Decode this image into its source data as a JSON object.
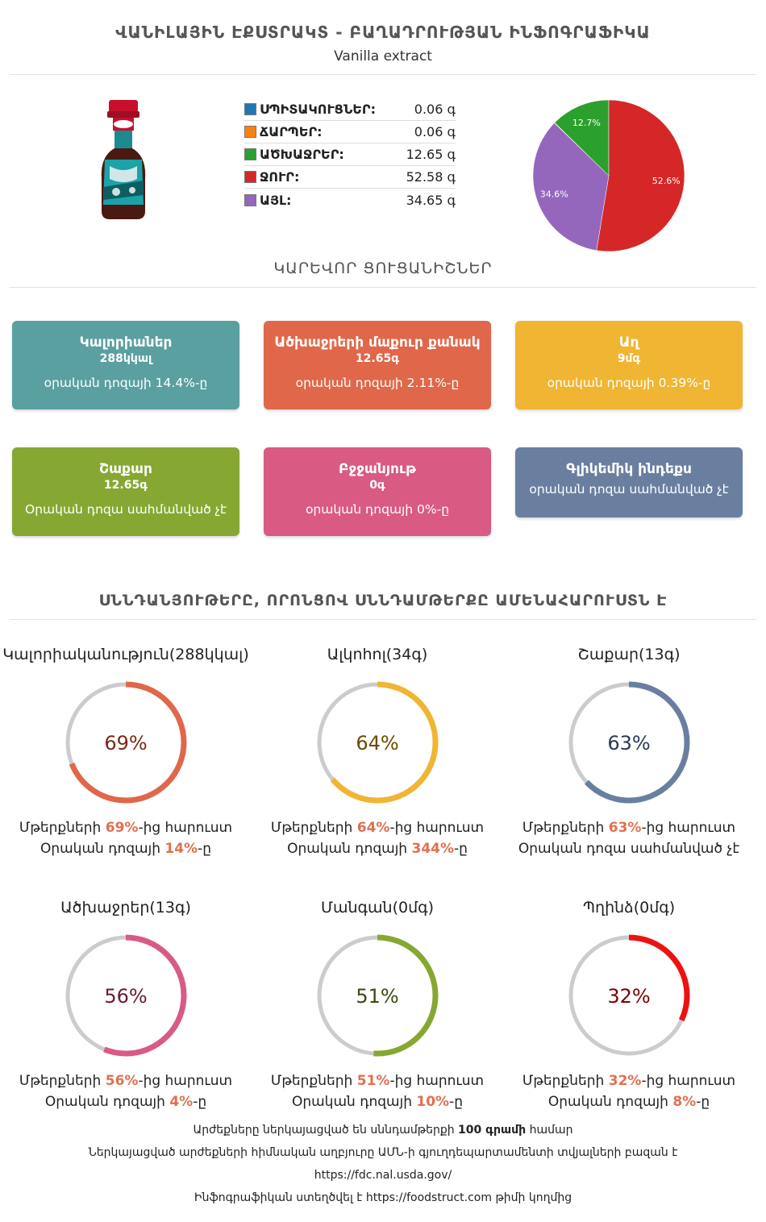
{
  "header": {
    "title": "ՎԱՆԻԼԱՅԻՆ ԷՔՍՏՐԱԿՏ - ԲԱՂԱԴՐՈՒԹՅԱՆ ԻՆՖՈԳՐԱՖԻԿԱ",
    "subtitle": "Vanilla extract"
  },
  "composition": [
    {
      "label": "ՍՊԻՏԱԿՈՒՑՆԵՐ:",
      "value": "0.06 գ",
      "color": "#1f77b4"
    },
    {
      "label": "ՃԱՐՊԵՐ:",
      "value": "0.06 գ",
      "color": "#ff7f0e"
    },
    {
      "label": "ԱԾԽԱՋՐԵՐ:",
      "value": "12.65 գ",
      "color": "#2ca02c"
    },
    {
      "label": "ՋՈՒՐ:",
      "value": "52.58 գ",
      "color": "#d62728"
    },
    {
      "label": "ԱՅԼ:",
      "value": "34.65 գ",
      "color": "#9467bd"
    }
  ],
  "chart_data": {
    "type": "pie",
    "slices": [
      {
        "label": "ՍՊԻՏԱԿՈՒՑՆԵՐ",
        "value": 0.06,
        "pct_label": "",
        "color": "#1f77b4"
      },
      {
        "label": "ՃԱՐՊԵՐ",
        "value": 0.06,
        "pct_label": "",
        "color": "#ff7f0e"
      },
      {
        "label": "ԱԾԽԱՋՐԵՐ",
        "value": 12.65,
        "pct_label": "12.7%",
        "color": "#2ca02c"
      },
      {
        "label": "ՋՈՒՐ",
        "value": 52.58,
        "pct_label": "52.6%",
        "color": "#d62728"
      },
      {
        "label": "ԱՅԼ",
        "value": 34.65,
        "pct_label": "34.6%",
        "color": "#9467bd"
      }
    ]
  },
  "key_facts_title": "ԿԱՐԵՎՈՐ ՑՈՒՑԱՆԻՇՆԵՐ",
  "cards": [
    {
      "name": "Կալորիաներ",
      "amount": "288կկալ",
      "daily": "օրական դոզայի 14.4%-ը",
      "color": "#5aa0a0"
    },
    {
      "name": "Ածխաջրերի մաքուր քանակ",
      "amount": "12.65գ",
      "daily": "օրական դոզայի 2.11%-ը",
      "color": "#e0674a"
    },
    {
      "name": "Աղ",
      "amount": "9մգ",
      "daily": "օրական դոզայի 0.39%-ը",
      "color": "#f0b532"
    },
    {
      "name": "Շաքար",
      "amount": "12.65գ",
      "daily": "Օրական դոզա սահմանված չէ",
      "color": "#86a832"
    },
    {
      "name": "Բջջանյութ",
      "amount": "0գ",
      "daily": "օրական դոզայի 0%-ը",
      "color": "#d95a82"
    },
    {
      "name": "Գլիկեմիկ ինդեքս",
      "amount": "",
      "daily": "օրական դոզա սահմանված չէ",
      "color": "#6a7fa0"
    }
  ],
  "ranking_title": "ՍՆՆԴԱՆՅՈՒԹԵՐԸ, ՈՐՈՆՑՈՎ ՍՆՆԴԱՄԹԵՐՔԸ ԱՄԵՆԱՀԱՐՈՒՍՏՆ Է",
  "donuts": [
    {
      "title": "Կալորիականություն(288կկալ)",
      "pct": 69,
      "pct_text": "69%",
      "color": "#e0674a",
      "text_color": "#7a2a14",
      "line1_pre": "Մթերքների ",
      "line1_accent": "69%",
      "line1_post": "-ից հարուստ",
      "line2_pre": "Օրական դոզայի ",
      "line2_accent": "14%",
      "line2_post": "-ը"
    },
    {
      "title": "Ալկոհոլ(34գ)",
      "pct": 64,
      "pct_text": "64%",
      "color": "#f0b532",
      "text_color": "#6a4a00",
      "line1_pre": "Մթերքների ",
      "line1_accent": "64%",
      "line1_post": "-ից հարուստ",
      "line2_pre": "Օրական դոզայի ",
      "line2_accent": "344%",
      "line2_post": "-ը"
    },
    {
      "title": "Շաքար(13գ)",
      "pct": 63,
      "pct_text": "63%",
      "color": "#6a7fa0",
      "text_color": "#2a3a55",
      "line1_pre": "Մթերքների ",
      "line1_accent": "63%",
      "line1_post": "-ից հարուստ",
      "line2_pre": "Օրական դոզա սահմանված չէ",
      "line2_accent": "",
      "line2_post": ""
    },
    {
      "title": "Ածխաջրեր(13գ)",
      "pct": 56,
      "pct_text": "56%",
      "color": "#d95a82",
      "text_color": "#6a1a35",
      "line1_pre": "Մթերքների ",
      "line1_accent": "56%",
      "line1_post": "-ից հարուստ",
      "line2_pre": "Օրական դոզայի ",
      "line2_accent": "4%",
      "line2_post": "-ը"
    },
    {
      "title": "Մանգան(0մգ)",
      "pct": 51,
      "pct_text": "51%",
      "color": "#86a832",
      "text_color": "#3a4a10",
      "line1_pre": "Մթերքների ",
      "line1_accent": "51%",
      "line1_post": "-ից հարուստ",
      "line2_pre": "Օրական դոզայի ",
      "line2_accent": "10%",
      "line2_post": "-ը"
    },
    {
      "title": "Պղինձ(0մգ)",
      "pct": 32,
      "pct_text": "32%",
      "color": "#ee1111",
      "text_color": "#7a0000",
      "line1_pre": "Մթերքների ",
      "line1_accent": "32%",
      "line1_post": "-ից հարուստ",
      "line2_pre": "Օրական դոզայի ",
      "line2_accent": "8%",
      "line2_post": "-ը"
    }
  ],
  "donut_track_color": "#cccccc",
  "footer": {
    "line1_pre": "Արժեքները ներկայացված են սննդամթերքի ",
    "line1_bold": "100 գրամի",
    "line1_post": " համար",
    "line2": "Ներկայացված արժեքների հիմնական աղբյուրը ԱՄՆ-ի գյուղդեպարտամենտի տվյալների բազան է",
    "line3": "https://fdc.nal.usda.gov/",
    "line4_pre": "Ինֆոգրաֆիկան ստեղծվել է ",
    "line4_site": "https://foodstruct.com",
    "line4_post": " թիմի կողմից"
  }
}
